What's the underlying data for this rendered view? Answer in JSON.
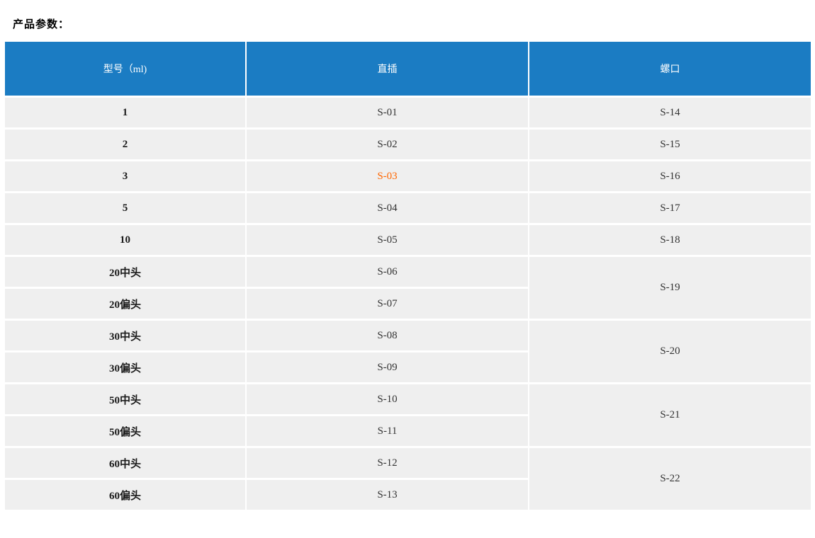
{
  "page": {
    "title": "产品参数："
  },
  "colors": {
    "header_bg": "#1b7cc3",
    "header_text": "#ffffff",
    "row_bg": "#efefef",
    "body_text": "#333333",
    "highlight": "#ff6600"
  },
  "table": {
    "headers": {
      "model": "型号（ml)",
      "straight": "直插",
      "screw": "螺口"
    },
    "rows": [
      {
        "model": "1",
        "straight": "S-01",
        "screw": "S-14"
      },
      {
        "model": "2",
        "straight": "S-02",
        "screw": "S-15"
      },
      {
        "model": "3",
        "straight": "S-03",
        "screw": "S-16",
        "straight_highlighted": true
      },
      {
        "model": "5",
        "straight": "S-04",
        "screw": "S-17"
      },
      {
        "model": "10",
        "straight": "S-05",
        "screw": "S-18"
      },
      {
        "model": "20中头",
        "straight": "S-06",
        "screw": "S-19",
        "screw_rowspan": 2
      },
      {
        "model": "20偏头",
        "straight": "S-07"
      },
      {
        "model": "30中头",
        "straight": "S-08",
        "screw": "S-20",
        "screw_rowspan": 2
      },
      {
        "model": "30偏头",
        "straight": "S-09"
      },
      {
        "model": "50中头",
        "straight": "S-10",
        "screw": "S-21",
        "screw_rowspan": 2
      },
      {
        "model": "50偏头",
        "straight": "S-11"
      },
      {
        "model": "60中头",
        "straight": "S-12",
        "screw": "S-22",
        "screw_rowspan": 2
      },
      {
        "model": "60偏头",
        "straight": "S-13"
      }
    ]
  }
}
